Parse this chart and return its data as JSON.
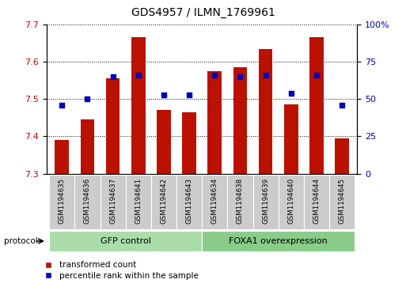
{
  "title": "GDS4957 / ILMN_1769961",
  "samples": [
    "GSM1194635",
    "GSM1194636",
    "GSM1194637",
    "GSM1194641",
    "GSM1194642",
    "GSM1194643",
    "GSM1194634",
    "GSM1194638",
    "GSM1194639",
    "GSM1194640",
    "GSM1194644",
    "GSM1194645"
  ],
  "transformed_count": [
    7.39,
    7.445,
    7.555,
    7.665,
    7.47,
    7.465,
    7.575,
    7.585,
    7.635,
    7.485,
    7.665,
    7.395
  ],
  "percentile_rank": [
    46,
    50,
    65,
    66,
    53,
    53,
    66,
    65,
    66,
    54,
    66,
    46
  ],
  "bar_bottom": 7.3,
  "ylim_left": [
    7.3,
    7.7
  ],
  "ylim_right": [
    0,
    100
  ],
  "yticks_left": [
    7.3,
    7.4,
    7.5,
    7.6,
    7.7
  ],
  "yticks_right": [
    0,
    25,
    50,
    75,
    100
  ],
  "bar_color": "#bb1100",
  "dot_color": "#0000bb",
  "groups": [
    {
      "label": "GFP control",
      "start": 0,
      "end": 6,
      "color": "#aaddaa"
    },
    {
      "label": "FOXA1 overexpression",
      "start": 6,
      "end": 12,
      "color": "#88cc88"
    }
  ],
  "legend_items": [
    {
      "label": "transformed count",
      "color": "#bb1100"
    },
    {
      "label": "percentile rank within the sample",
      "color": "#0000bb"
    }
  ],
  "protocol_label": "protocol",
  "left_tick_color": "#cc0000",
  "right_tick_color": "#0000cc",
  "bar_width": 0.55,
  "figsize": [
    5.13,
    3.63
  ],
  "dpi": 100,
  "bg_color": "#ffffff"
}
